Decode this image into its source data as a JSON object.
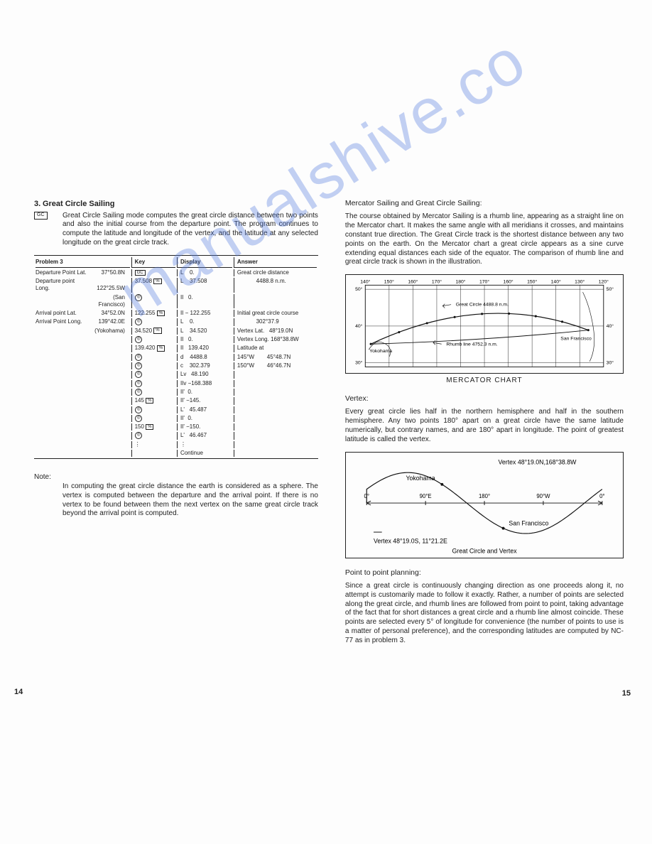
{
  "watermark": "manualshive.co",
  "page_left": "14",
  "page_right": "15",
  "left": {
    "section_num": "3.",
    "section_title": "Great Circle Sailing",
    "gc_key": "GC",
    "intro": "Great Circle Sailing mode computes the great circle distance between two points and also the initial course from the departure point. The program continues to compute the latitude and longitude of the vertex, and the latitude at any selected longitude on the great circle track.",
    "table": {
      "headers": [
        "Problem 3",
        "Key",
        "Display",
        "Answer"
      ],
      "prob_rows": [
        [
          "Departure Point Lat.",
          "37°50.8N"
        ],
        [
          "Departure point Long.",
          "122°25.5W"
        ],
        [
          "",
          "(San Francisco)"
        ],
        [
          "Arrival point Lat.",
          "34°52.0N"
        ],
        [
          "Arrival Point Long.",
          "139°42.0E"
        ],
        [
          "",
          "(Yokohama)"
        ]
      ],
      "key_rows": [
        {
          "k": "[GC]",
          "d": "L    0.",
          "a": "Great circle distance"
        },
        {
          "k": "37.508  [%]",
          "d": "L    37.508",
          "a": "            4488.8 n.m."
        },
        {
          "k": "[◎]",
          "d": "II   0.",
          "a": ""
        },
        {
          "k": "122.255  [%]",
          "d": "II − 122.255",
          "a": "Initial great circle course"
        },
        {
          "k": "[◎]",
          "d": "L    0.",
          "a": "            302°37.9"
        },
        {
          "k": "34.520  [%]",
          "d": "L    34.520",
          "a": "Vertex Lat.   48°19.0N"
        },
        {
          "k": "[◎]",
          "d": "II   0.",
          "a": "Vertex Long. 168°38.8W"
        },
        {
          "k": "139.420  [%]",
          "d": "II   139.420",
          "a": "Latitude at"
        },
        {
          "k": "[◎]",
          "d": "d    4488.8",
          "a": "145°W        45°48.7N"
        },
        {
          "k": "[◎]",
          "d": "c    302.379",
          "a": "150°W        46°46.7N"
        },
        {
          "k": "[◎]",
          "d": "Lv   48.190",
          "a": ""
        },
        {
          "k": "[◎]",
          "d": "IIv −168.388",
          "a": ""
        },
        {
          "k": "[◎]",
          "d": "II'  0.",
          "a": ""
        },
        {
          "k": "145  [%]",
          "d": "II' −145.",
          "a": ""
        },
        {
          "k": "[◎]",
          "d": "L'   45.487",
          "a": ""
        },
        {
          "k": "[◎]",
          "d": "II'  0.",
          "a": ""
        },
        {
          "k": "150  [%]",
          "d": "II' −150.",
          "a": ""
        },
        {
          "k": "[◎]",
          "d": "L'   46.467",
          "a": ""
        },
        {
          "k": "⋮",
          "d": "⋮",
          "a": ""
        },
        {
          "k": "",
          "d": "Continue",
          "a": ""
        }
      ]
    },
    "note_label": "Note:",
    "note": "In computing the great circle distance the earth is considered as a sphere. The vertex is computed between the departure and the arrival point. If there is no vertex to be found between them the next vertex on the same great circle track beyond the arrival point is computed."
  },
  "right": {
    "head1": "Mercator Sailing and Great Circle Sailing:",
    "para1": "The course obtained by Mercator Sailing is a rhumb line, appearing as a straight line on the Mercator chart. It makes the same angle with all meridians it crosses, and maintains constant true direction. The Great Circle track is the shortest distance between any two points on the earth. On the Mercator chart a great circle appears as a sine curve extending equal distances each side of the equator. The comparison of rhumb line and great circle track is shown in the illustration.",
    "mercator": {
      "lon_ticks": [
        "140°",
        "150°",
        "160°",
        "170°",
        "180°",
        "170°",
        "160°",
        "150°",
        "140°",
        "130°",
        "120°"
      ],
      "lat_ticks": [
        "50°",
        "40°",
        "30°"
      ],
      "gc_label": "Great Circle 4488.8 n.m.",
      "rhumb_label": "Rhumb line 4752.3 n.m.",
      "city_left": "Yokohama",
      "city_right": "San Francisco",
      "caption": "MERCATOR CHART",
      "grid_color": "#222222",
      "gc_color": "#111111",
      "background": "#ffffff"
    },
    "vertex_head": "Vertex:",
    "vertex_para": "Every great circle lies half in the northern hemisphere and half in the southern hemisphere. Any two points 180° apart on a great circle have the same latitude numerically, but contrary names, and are 180° apart in longitude. The point of greatest latitude is called the vertex.",
    "vertex_diagram": {
      "top_vertex": "Vertex 48°19.0N,168°38.8W",
      "yokohama": "Yokohama",
      "sf": "San Francisco",
      "axis_ticks": [
        "0°",
        "90°E",
        "180°",
        "90°W",
        "0°"
      ],
      "bottom_vertex": "Vertex 48°19.0S, 11°21.2E",
      "caption": "Great Circle and Vertex",
      "curve_color": "#111111"
    },
    "p2p_head": "Point to point planning:",
    "p2p_para": "Since a great circle is continuously changing direction as one proceeds along it, no attempt is customarily made to follow it exactly. Rather, a number of points are selected along the great circle, and rhumb lines are followed from point to point, taking advantage of the fact that for short distances a great circle and a rhumb line almost coincide. These points are selected every 5° of longitude for convenience (the number of points to use is a matter of personal preference), and the corresponding latitudes are computed by NC-77 as in problem 3."
  }
}
